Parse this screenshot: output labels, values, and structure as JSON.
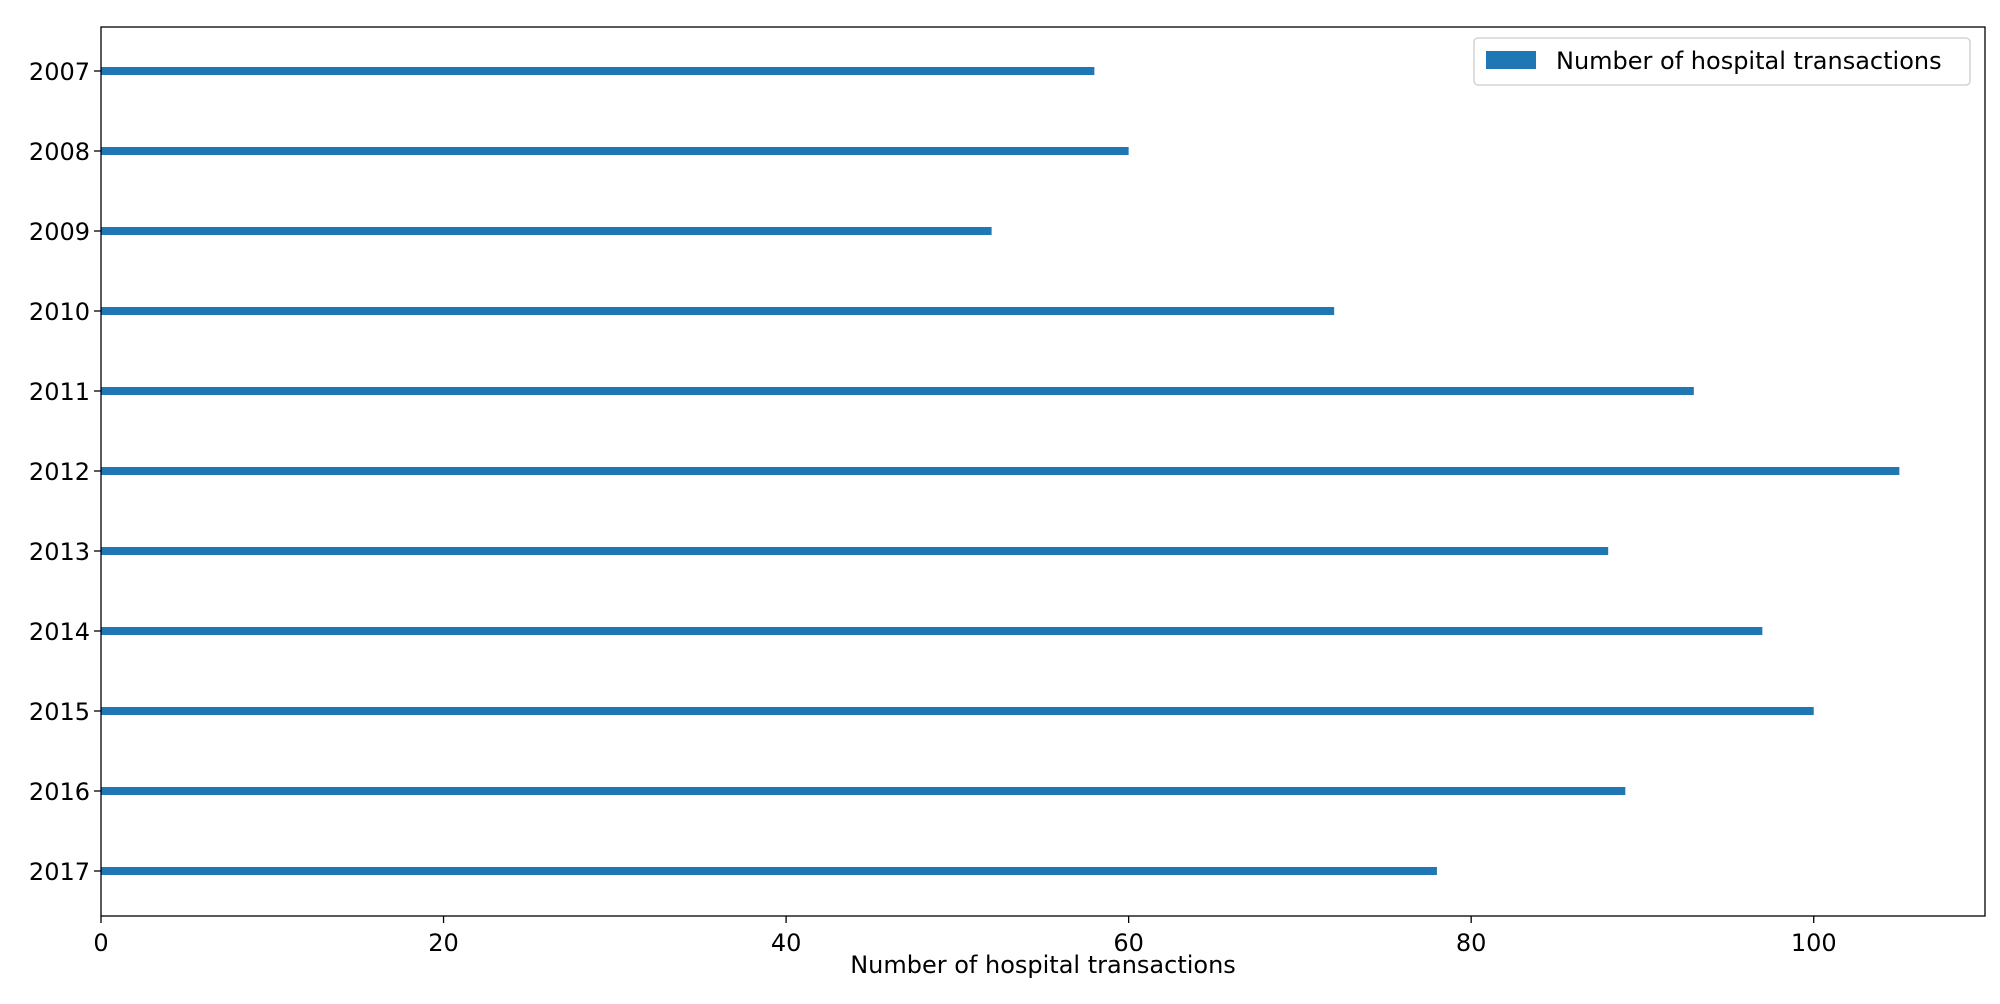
{
  "chart_data": {
    "type": "bar",
    "orientation": "horizontal",
    "categories": [
      "2007",
      "2008",
      "2009",
      "2010",
      "2011",
      "2012",
      "2013",
      "2014",
      "2015",
      "2016",
      "2017"
    ],
    "series": [
      {
        "name": "Number of hospital transactions",
        "values": [
          58,
          60,
          52,
          72,
          93,
          105,
          88,
          97,
          100,
          89,
          78
        ]
      }
    ],
    "xlabel": "Number of hospital transactions",
    "ylabel": "",
    "xlim": [
      0,
      110
    ],
    "xticks": [
      0,
      20,
      40,
      60,
      80,
      100
    ],
    "grid": false,
    "legend_position": "top-right",
    "colors": {
      "bar": "#1f77b4",
      "axis": "#000000",
      "legend_border": "#cccccc"
    }
  }
}
